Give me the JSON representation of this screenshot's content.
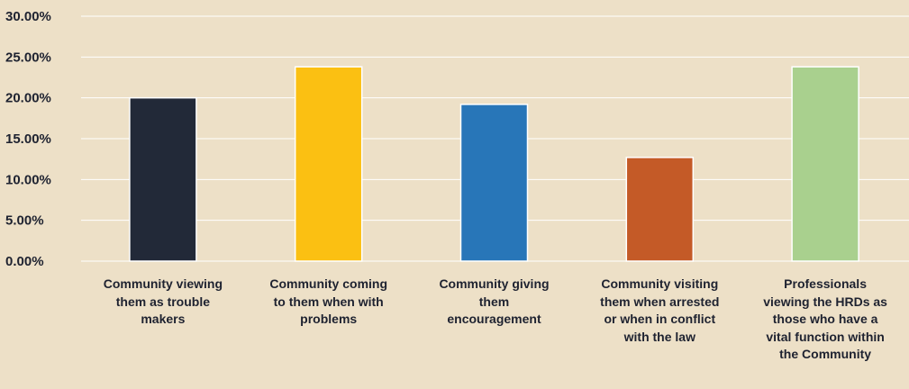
{
  "chart_data": {
    "type": "bar",
    "categories": [
      "Community viewing\nthem as trouble\nmakers",
      "Community coming\nto them when with\nproblems",
      "Community giving\nthem\nencouragement",
      "Community visiting\nthem when arrested\nor when in conflict\nwith the law",
      "Professionals\nviewing the HRDs as\nthose who have a\nvital function within\nthe Community"
    ],
    "values": [
      20.0,
      23.8,
      19.2,
      12.7,
      23.8
    ],
    "colors": [
      "#222938",
      "#FBC012",
      "#2876B8",
      "#C45A27",
      "#A9D08E"
    ],
    "ylim": [
      0,
      30
    ],
    "yticks": [
      "0.00%",
      "5.00%",
      "10.00%",
      "15.00%",
      "20.00%",
      "25.00%",
      "30.00%"
    ],
    "grid": true,
    "title": "",
    "xlabel": "",
    "ylabel": ""
  }
}
